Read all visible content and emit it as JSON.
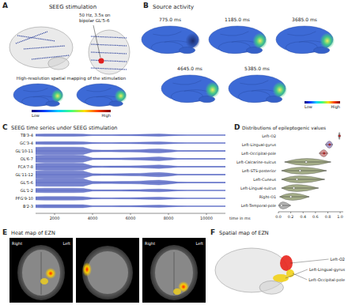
{
  "panels": {
    "A": {
      "letter": "A",
      "title": "SEEG stimulation",
      "annotation": "50 Hz, 3.5s on bipolar GL'5-6",
      "subtitle": "High-resolution spatial mapping of the stimulation",
      "colorbar": [
        "Low",
        "High"
      ]
    },
    "B": {
      "letter": "B",
      "title": "Source activity",
      "frames": [
        "775.0 ms",
        "1185.0 ms",
        "3685.0 ms",
        "4645.0 ms",
        "5385.0 ms"
      ],
      "colorbar": [
        "Low",
        "High"
      ]
    },
    "C": {
      "letter": "C"
    },
    "D": {
      "letter": "D"
    },
    "E": {
      "letter": "E",
      "title": "Heat map of EZN",
      "orientation": [
        "Right",
        "Left"
      ]
    },
    "F": {
      "letter": "F",
      "title": "Spatial map of EZN",
      "regions": [
        {
          "label": "Left-O2",
          "color": "#e8231c"
        },
        {
          "label": "Left-Lingual-gyrus",
          "color": "#f2d21a"
        },
        {
          "label": "Left-Occipital-pole",
          "color": "#f2d21a"
        }
      ]
    }
  },
  "chart_data": [
    {
      "type": "line",
      "title": "SEEG time series under SEEG stimulation",
      "x_label": "time in ms",
      "xlim": [
        1000,
        11000
      ],
      "xticks": [
        2000,
        4000,
        6000,
        8000,
        10000
      ],
      "grid": false,
      "tick_labels": "x",
      "x": [
        1000,
        1500,
        2000,
        2500,
        3000,
        3500,
        4000,
        4500,
        5000,
        5500,
        6000,
        6500,
        7000,
        7500,
        8000,
        8500,
        9000,
        9500,
        10000,
        10500,
        11000
      ],
      "series": [
        {
          "name": "TB'3-4",
          "color": "#4a5bbf",
          "values": [
            0.12,
            0.15,
            0.15,
            0.15,
            0.15,
            0.13,
            0.06,
            0.06,
            0.06,
            0.07,
            0.07,
            0.09,
            0.12,
            0.15,
            0.1,
            0.04,
            0.03,
            0.03,
            0.03,
            0.03,
            0.03
          ]
        },
        {
          "name": "GC'3-4",
          "color": "#4a5bbf",
          "values": [
            0.14,
            0.17,
            0.17,
            0.17,
            0.17,
            0.15,
            0.07,
            0.06,
            0.06,
            0.07,
            0.08,
            0.1,
            0.13,
            0.16,
            0.11,
            0.04,
            0.03,
            0.03,
            0.03,
            0.03,
            0.03
          ]
        },
        {
          "name": "GL'10-11",
          "color": "#4a5bbf",
          "values": [
            0.45,
            0.48,
            0.48,
            0.48,
            0.48,
            0.46,
            0.12,
            0.1,
            0.1,
            0.12,
            0.13,
            0.15,
            0.22,
            0.26,
            0.18,
            0.06,
            0.04,
            0.04,
            0.04,
            0.04,
            0.04
          ]
        },
        {
          "name": "OL'6-7",
          "color": "#4a5bbf",
          "values": [
            0.42,
            0.45,
            0.45,
            0.45,
            0.45,
            0.43,
            0.1,
            0.09,
            0.09,
            0.1,
            0.12,
            0.14,
            0.2,
            0.24,
            0.16,
            0.05,
            0.04,
            0.04,
            0.04,
            0.04,
            0.04
          ]
        },
        {
          "name": "FCA'7-8",
          "color": "#4a5bbf",
          "values": [
            0.4,
            0.44,
            0.44,
            0.44,
            0.44,
            0.42,
            0.1,
            0.08,
            0.09,
            0.1,
            0.11,
            0.13,
            0.18,
            0.22,
            0.15,
            0.05,
            0.04,
            0.04,
            0.04,
            0.04,
            0.04
          ]
        },
        {
          "name": "GL'11-12",
          "color": "#4a5bbf",
          "values": [
            0.45,
            0.48,
            0.48,
            0.48,
            0.48,
            0.46,
            0.12,
            0.1,
            0.11,
            0.12,
            0.14,
            0.16,
            0.22,
            0.27,
            0.19,
            0.06,
            0.04,
            0.04,
            0.04,
            0.04,
            0.04
          ]
        },
        {
          "name": "GL'5-6",
          "color": "#4a5bbf",
          "values": [
            0.46,
            0.48,
            0.48,
            0.48,
            0.48,
            0.47,
            0.14,
            0.12,
            0.12,
            0.14,
            0.15,
            0.18,
            0.24,
            0.3,
            0.2,
            0.07,
            0.05,
            0.05,
            0.05,
            0.05,
            0.05
          ]
        },
        {
          "name": "GL'1-2",
          "color": "#4a5bbf",
          "values": [
            0.25,
            0.28,
            0.28,
            0.28,
            0.28,
            0.26,
            0.08,
            0.07,
            0.07,
            0.08,
            0.09,
            0.11,
            0.15,
            0.18,
            0.12,
            0.05,
            0.03,
            0.03,
            0.03,
            0.03,
            0.03
          ]
        },
        {
          "name": "PFG'9-10",
          "color": "#4a5bbf",
          "values": [
            0.2,
            0.23,
            0.23,
            0.23,
            0.23,
            0.21,
            0.07,
            0.06,
            0.06,
            0.07,
            0.08,
            0.1,
            0.13,
            0.16,
            0.11,
            0.04,
            0.03,
            0.03,
            0.03,
            0.03,
            0.03
          ]
        },
        {
          "name": "B'2-3",
          "color": "#4a5bbf",
          "values": [
            0.18,
            0.2,
            0.2,
            0.2,
            0.2,
            0.19,
            0.06,
            0.06,
            0.06,
            0.07,
            0.07,
            0.09,
            0.12,
            0.14,
            0.1,
            0.04,
            0.03,
            0.03,
            0.03,
            0.03,
            0.03
          ]
        }
      ]
    },
    {
      "type": "violin",
      "title": "Distributions of epileptogenic values",
      "orientation": "horizontal",
      "grid": false,
      "categories": [
        "Left-O2",
        "Left-Lingual-gyrus",
        "Left-Occipital-pole",
        "Left-Calcarine-sulcus",
        "Left-STS-posterior",
        "Left-Cuneus",
        "Left-Lingual-sulcus",
        "Right-O1",
        "Left-Temporal-pole"
      ],
      "medians": [
        0.99,
        0.83,
        0.74,
        0.45,
        0.35,
        0.3,
        0.25,
        0.2,
        0.05
      ],
      "mins": [
        0.97,
        0.76,
        0.66,
        0.1,
        0.05,
        0.05,
        0.05,
        0.02,
        0.0
      ],
      "maxs": [
        1.0,
        0.88,
        0.8,
        0.85,
        0.78,
        0.75,
        0.65,
        0.5,
        0.2
      ],
      "colors": [
        "#8a8a8a",
        "#9a85c0",
        "#d07a7a",
        "#8f9a6a",
        "#8f9a6a",
        "#8f9a6a",
        "#8f9a6a",
        "#8f9a6a",
        "#a0a0a0"
      ],
      "xlim": [
        0,
        1.05
      ],
      "xticks": [
        {
          "value": 0,
          "label": "0.0"
        },
        {
          "value": 0.2,
          "label": "0.2"
        },
        {
          "value": 0.4,
          "label": "0.4"
        },
        {
          "value": 0.6,
          "label": "0.6"
        },
        {
          "value": 0.8,
          "label": "0.8"
        },
        {
          "value": 1,
          "label": "1.0"
        }
      ]
    }
  ]
}
